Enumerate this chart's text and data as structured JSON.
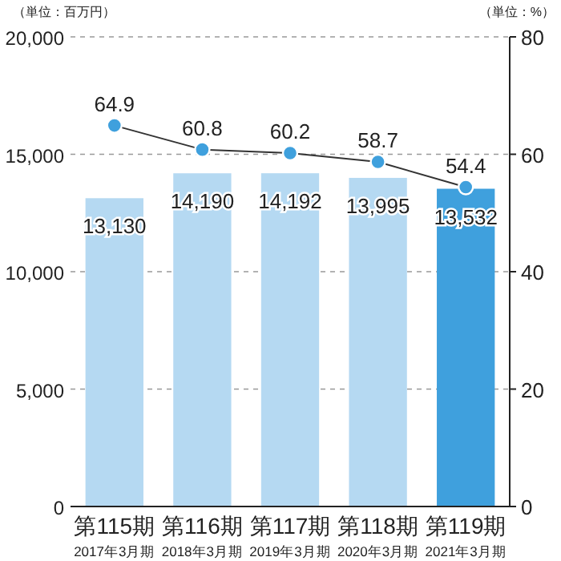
{
  "chart_data": {
    "type": "bar",
    "ylabel": "（単位：百万円）",
    "y2label": "（単位：%）",
    "categories": [
      "第115期\n2017年3月期",
      "第116期\n2018年3月期",
      "第117期\n2019年3月期",
      "第118期\n2020年3月期",
      "第119期\n2021年3月期"
    ],
    "series": [
      {
        "colors": [
          "#b5d9f2",
          "#b5d9f2",
          "#b5d9f2",
          "#b5d9f2",
          "#3fa0dd"
        ],
        "values": [
          13130,
          14190,
          14192,
          13995,
          13532
        ],
        "value_labels": [
          "13,130",
          "14,190",
          "14,192",
          "13,995",
          "13,532"
        ]
      },
      {
        "type": "line",
        "axis": "y2",
        "color": "#3fa0dd",
        "values": [
          64.9,
          60.8,
          60.2,
          58.7,
          54.4
        ]
      }
    ],
    "ylim": [
      0,
      20000
    ],
    "yticks": [
      {
        "value": 0,
        "label": "0"
      },
      {
        "value": 5000,
        "label": "5,000"
      },
      {
        "value": 10000,
        "label": "10,000"
      },
      {
        "value": 15000,
        "label": "15,000"
      },
      {
        "value": 20000,
        "label": "20,000"
      }
    ],
    "y2lim": [
      0,
      80
    ],
    "y2ticks": [
      0,
      20,
      40,
      60,
      80
    ],
    "grid": "y",
    "marker": "circle",
    "data_labels": true
  }
}
